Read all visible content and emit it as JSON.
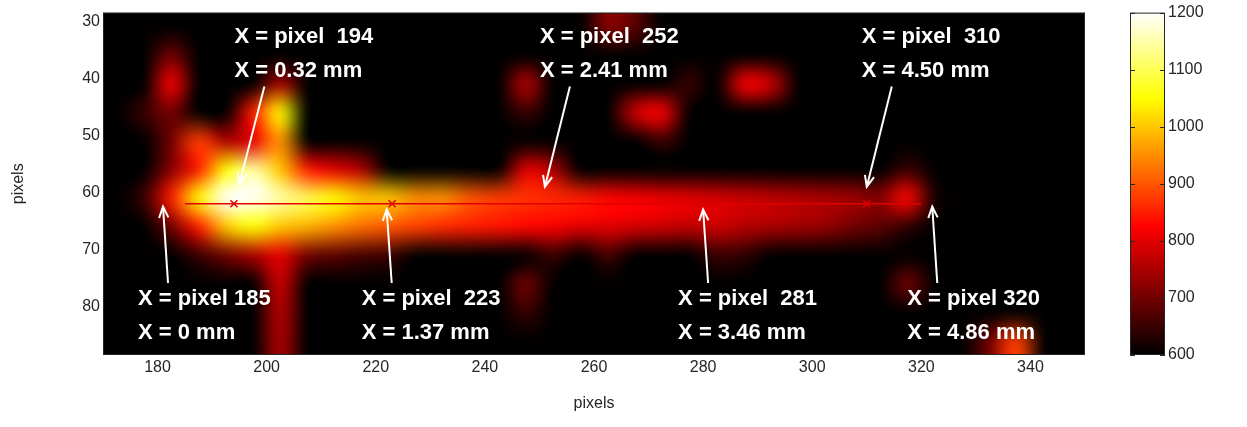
{
  "chart_data": {
    "type": "heatmap",
    "xlabel": "pixels",
    "ylabel": "pixels",
    "xlim": [
      170,
      350
    ],
    "ylim": [
      28.5,
      88.5
    ],
    "xticks": [
      180,
      200,
      220,
      240,
      260,
      280,
      300,
      320,
      340
    ],
    "yticks": [
      30,
      40,
      50,
      60,
      70,
      80
    ],
    "grid": false,
    "x": [
      172.5,
      177.5,
      182.5,
      187.5,
      192.5,
      197.5,
      202.5,
      207.5,
      212.5,
      217.5,
      222.5,
      227.5,
      232.5,
      237.5,
      242.5,
      247.5,
      252.5,
      257.5,
      262.5,
      267.5,
      272.5,
      277.5,
      282.5,
      287.5,
      292.5,
      297.5,
      302.5,
      307.5,
      312.5,
      317.5,
      322.5,
      327.5,
      332.5,
      337.5,
      342.5,
      347.5
    ],
    "y": [
      31,
      36,
      41,
      46,
      51,
      56,
      61,
      66,
      71,
      76,
      81,
      86
    ],
    "cells": [
      [
        600,
        600,
        600,
        600,
        600,
        600,
        600,
        600,
        600,
        600,
        600,
        600,
        600,
        600,
        600,
        600,
        600,
        600,
        720,
        680,
        600,
        600,
        600,
        600,
        600,
        600,
        600,
        600,
        600,
        600,
        600,
        600,
        600,
        600,
        600,
        600
      ],
      [
        600,
        600,
        700,
        600,
        600,
        600,
        600,
        600,
        600,
        600,
        600,
        600,
        600,
        600,
        600,
        600,
        600,
        600,
        600,
        600,
        600,
        600,
        600,
        600,
        600,
        600,
        600,
        600,
        600,
        600,
        600,
        600,
        600,
        600,
        600,
        600
      ],
      [
        600,
        600,
        820,
        600,
        600,
        600,
        750,
        600,
        600,
        600,
        600,
        600,
        600,
        600,
        600,
        760,
        600,
        600,
        600,
        600,
        600,
        650,
        600,
        820,
        780,
        600,
        600,
        600,
        600,
        600,
        600,
        600,
        600,
        600,
        600,
        600
      ],
      [
        600,
        650,
        700,
        600,
        600,
        850,
        1050,
        600,
        600,
        600,
        600,
        600,
        600,
        600,
        600,
        650,
        600,
        600,
        600,
        780,
        820,
        600,
        600,
        600,
        600,
        600,
        600,
        600,
        600,
        600,
        600,
        600,
        600,
        600,
        600,
        600
      ],
      [
        600,
        600,
        700,
        880,
        750,
        800,
        950,
        600,
        600,
        600,
        600,
        600,
        600,
        600,
        600,
        600,
        600,
        600,
        600,
        600,
        650,
        600,
        600,
        600,
        600,
        600,
        600,
        600,
        600,
        600,
        600,
        600,
        600,
        600,
        600,
        600
      ],
      [
        600,
        600,
        720,
        850,
        1050,
        1150,
        1000,
        850,
        800,
        750,
        600,
        600,
        600,
        600,
        600,
        800,
        750,
        600,
        600,
        600,
        600,
        600,
        600,
        600,
        600,
        600,
        600,
        600,
        600,
        650,
        600,
        600,
        600,
        600,
        600,
        600
      ],
      [
        600,
        650,
        850,
        1050,
        1200,
        1200,
        1150,
        1100,
        1050,
        1000,
        1000,
        950,
        950,
        900,
        880,
        870,
        860,
        850,
        830,
        820,
        810,
        800,
        790,
        780,
        770,
        760,
        750,
        740,
        720,
        830,
        620,
        600,
        600,
        600,
        600,
        600
      ],
      [
        600,
        600,
        700,
        850,
        1000,
        1050,
        1000,
        980,
        950,
        920,
        900,
        880,
        860,
        850,
        840,
        830,
        820,
        800,
        800,
        790,
        780,
        770,
        780,
        760,
        750,
        740,
        730,
        700,
        680,
        640,
        600,
        600,
        600,
        600,
        600,
        600
      ],
      [
        600,
        600,
        600,
        650,
        700,
        750,
        800,
        700,
        680,
        660,
        650,
        600,
        600,
        600,
        600,
        600,
        650,
        600,
        660,
        600,
        600,
        600,
        650,
        640,
        600,
        600,
        600,
        600,
        600,
        600,
        600,
        600,
        600,
        600,
        600,
        600
      ],
      [
        600,
        600,
        600,
        600,
        600,
        600,
        780,
        600,
        600,
        600,
        600,
        600,
        600,
        600,
        600,
        700,
        600,
        600,
        600,
        600,
        600,
        600,
        600,
        600,
        600,
        600,
        600,
        600,
        600,
        700,
        600,
        600,
        600,
        600,
        600,
        600
      ],
      [
        600,
        600,
        600,
        600,
        600,
        600,
        760,
        600,
        600,
        600,
        600,
        600,
        600,
        600,
        600,
        650,
        600,
        600,
        600,
        600,
        600,
        600,
        600,
        600,
        600,
        600,
        600,
        600,
        600,
        600,
        600,
        600,
        600,
        600,
        600,
        600
      ],
      [
        600,
        600,
        600,
        600,
        600,
        600,
        750,
        600,
        600,
        600,
        600,
        600,
        600,
        600,
        600,
        600,
        600,
        600,
        600,
        600,
        600,
        600,
        600,
        600,
        600,
        600,
        600,
        600,
        600,
        600,
        600,
        600,
        700,
        880,
        600,
        600
      ]
    ],
    "colorbar": {
      "range": [
        600,
        1200
      ],
      "ticks": [
        600,
        700,
        800,
        900,
        1000,
        1100,
        1200
      ]
    },
    "series": [
      {
        "type": "line",
        "color": "#e00000",
        "x": [
          185,
          320
        ],
        "values": [
          62,
          62
        ]
      },
      {
        "type": "scatter",
        "marker": "x",
        "color": "#e00000",
        "x": [
          194,
          223,
          310
        ],
        "values": [
          62,
          62,
          62
        ]
      }
    ],
    "annotations": [
      {
        "text": [
          "X = pixel 185",
          "X = 0 mm"
        ],
        "arrow_to": [
          181,
          62.5
        ]
      },
      {
        "text": [
          "X = pixel  194",
          "X = 0.32 mm"
        ],
        "arrow_to": [
          195,
          58.5
        ]
      },
      {
        "text": [
          "X = pixel  223",
          "X = 1.37 mm"
        ],
        "arrow_to": [
          222,
          63
        ]
      },
      {
        "text": [
          "X = pixel  252",
          "X = 2.41 mm"
        ],
        "arrow_to": [
          251,
          59
        ]
      },
      {
        "text": [
          "X = pixel  281",
          "X = 3.46 mm"
        ],
        "arrow_to": [
          280,
          63
        ]
      },
      {
        "text": [
          "X = pixel  310",
          "X = 4.50 mm"
        ],
        "arrow_to": [
          310,
          59
        ]
      },
      {
        "text": [
          "X = pixel 320",
          "X = 4.86 mm"
        ],
        "arrow_to": [
          322,
          62.5
        ]
      }
    ]
  }
}
